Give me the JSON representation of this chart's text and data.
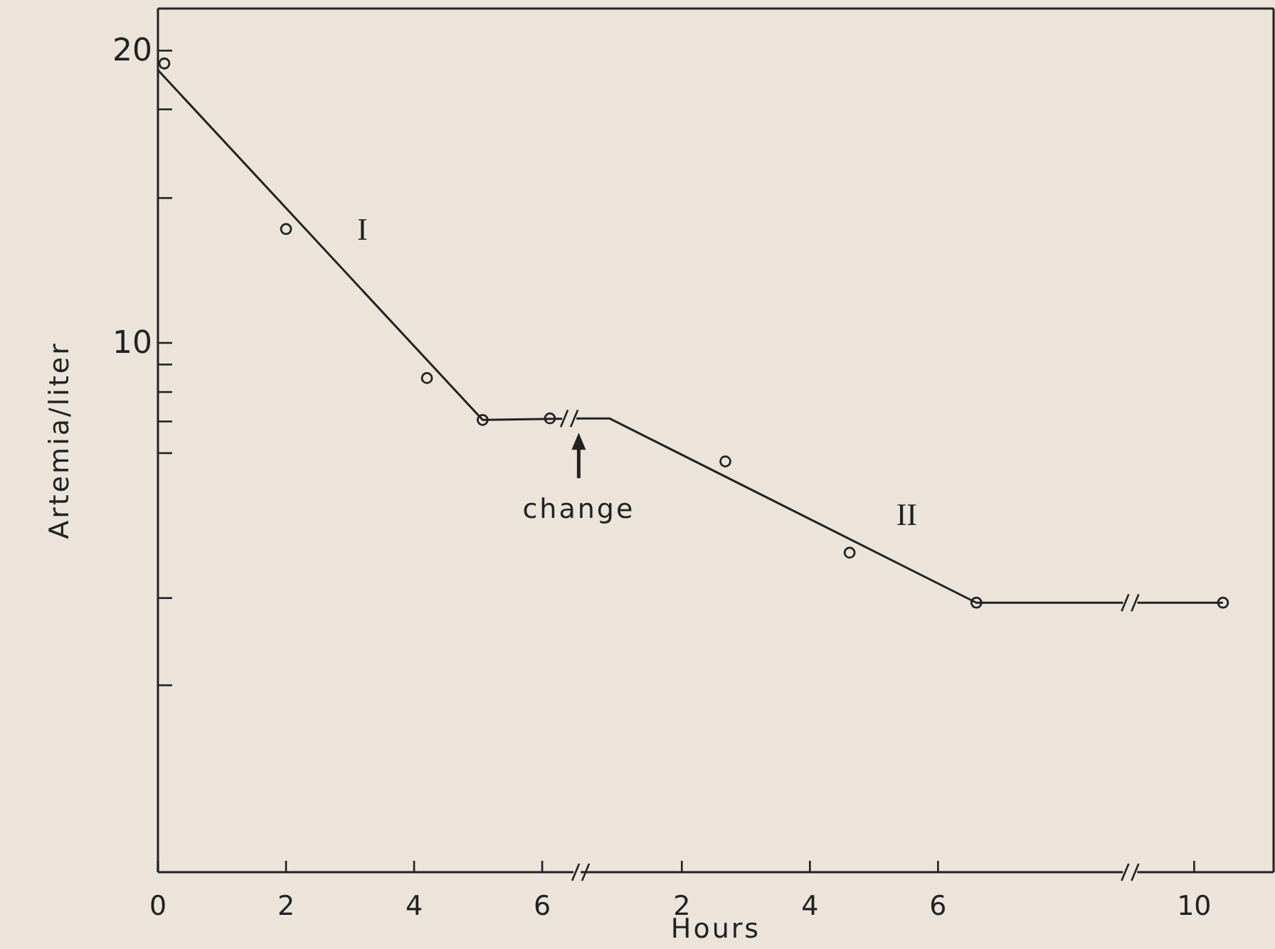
{
  "chart_data": [
    {
      "type": "scatter",
      "ylabel": "Artemia/liter",
      "log": "y",
      "marker": "circle",
      "grid": false,
      "xlim": [
        0,
        6.6
      ],
      "ylim": [
        2.85,
        22.1
      ],
      "xticks": [
        0,
        2,
        4,
        6
      ],
      "yticks": [
        20,
        {
          "value": 17.4,
          "label": null
        },
        {
          "value": 14.1,
          "label": null
        },
        10,
        {
          "value": 9.5,
          "label": null
        },
        {
          "value": 8.9,
          "label": null
        },
        {
          "value": 8.3,
          "label": null
        },
        {
          "value": 7.7,
          "label": null
        },
        {
          "value": 5.46,
          "label": null
        },
        {
          "value": 4.44,
          "label": null
        }
      ],
      "series": [
        {
          "color": "#222222",
          "x": [
            0.1,
            2.0,
            4.2,
            5.07,
            6.12
          ],
          "values": [
            19.4,
            13.1,
            9.2,
            8.33,
            8.36
          ]
        },
        {
          "type": "line",
          "color": "#222222",
          "marker": "none",
          "line_style": "solid",
          "x": [
            0,
            5.07,
            6.6
          ],
          "values": [
            19.1,
            8.33,
            8.36
          ]
        }
      ],
      "annotations": [
        "I",
        {
          "text": "change",
          "x": 6.57,
          "y": 8.36
        }
      ]
    },
    {
      "type": "scatter",
      "xlabel": "Hours",
      "log": "y",
      "marker": "circle",
      "tick_labels": "x",
      "xlim": [
        0.42,
        11.24
      ],
      "ylim": [
        2.85,
        22.1
      ],
      "xticks": [
        2,
        4,
        6,
        10
      ],
      "series": [
        {
          "color": "#222222",
          "x": [
            2.68,
            4.62,
            6.6,
            10.45
          ],
          "values": [
            7.55,
            6.08,
            5.4,
            5.4
          ]
        },
        {
          "type": "line",
          "color": "#222222",
          "marker": "none",
          "line_style": "solid",
          "x": [
            0.42,
            0.87,
            6.6,
            10.45
          ],
          "values": [
            8.36,
            8.36,
            5.4,
            5.4
          ]
        }
      ],
      "annotations": [
        "II"
      ]
    }
  ]
}
